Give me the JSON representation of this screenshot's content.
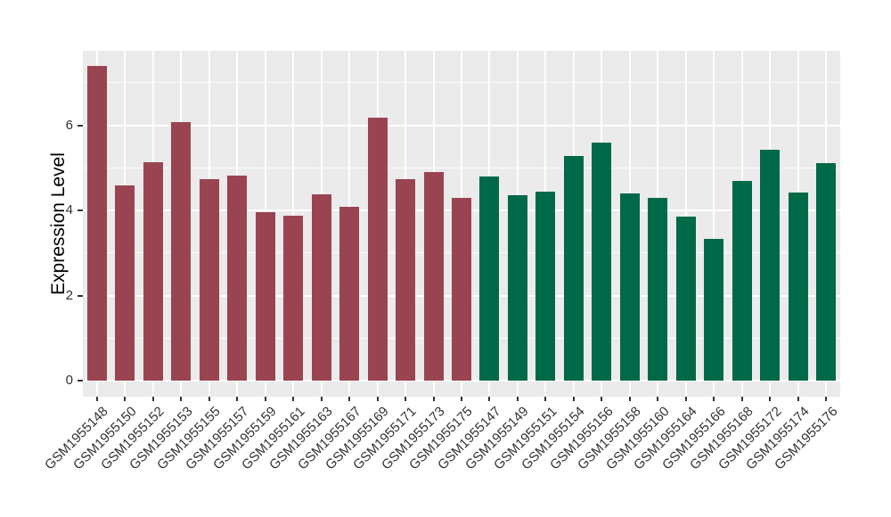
{
  "chart_data": {
    "type": "bar",
    "title": "",
    "xlabel": "",
    "ylabel": "Expression Level",
    "ylim": [
      -0.37,
      7.75
    ],
    "yticks": [
      {
        "value": 0,
        "label": "0"
      },
      {
        "value": 2,
        "label": "2"
      },
      {
        "value": 4,
        "label": "4"
      },
      {
        "value": 6,
        "label": "6"
      }
    ],
    "grid": {
      "color": "#FFFFFF",
      "major_y": [
        0,
        2,
        4,
        6
      ],
      "minor_y": [
        1,
        3,
        5,
        7
      ],
      "vertical_x": "category-centers"
    },
    "legend_position": "none",
    "panel_background": "#EBEBEB",
    "group_colors": [
      "#9A4451",
      "#006949"
    ],
    "categories": [
      "GSM1955148",
      "GSM1955150",
      "GSM1955152",
      "GSM1955153",
      "GSM1955155",
      "GSM1955157",
      "GSM1955159",
      "GSM1955161",
      "GSM1955163",
      "GSM1955167",
      "GSM1955169",
      "GSM1955171",
      "GSM1955173",
      "GSM1955175",
      "GSM1955147",
      "GSM1955149",
      "GSM1955151",
      "GSM1955154",
      "GSM1955156",
      "GSM1955158",
      "GSM1955160",
      "GSM1955164",
      "GSM1955166",
      "GSM1955168",
      "GSM1955172",
      "GSM1955174",
      "GSM1955176"
    ],
    "values": [
      7.4,
      4.6,
      5.14,
      6.07,
      4.74,
      4.83,
      3.97,
      3.87,
      4.39,
      4.09,
      6.17,
      4.74,
      4.9,
      4.3,
      4.8,
      4.36,
      4.44,
      5.28,
      5.6,
      4.41,
      4.29,
      3.86,
      3.33,
      4.69,
      5.43,
      4.42,
      5.12
    ],
    "colors": [
      "#9A4451",
      "#9A4451",
      "#9A4451",
      "#9A4451",
      "#9A4451",
      "#9A4451",
      "#9A4451",
      "#9A4451",
      "#9A4451",
      "#9A4451",
      "#9A4451",
      "#9A4451",
      "#9A4451",
      "#9A4451",
      "#006949",
      "#006949",
      "#006949",
      "#006949",
      "#006949",
      "#006949",
      "#006949",
      "#006949",
      "#006949",
      "#006949",
      "#006949",
      "#006949",
      "#006949"
    ]
  }
}
